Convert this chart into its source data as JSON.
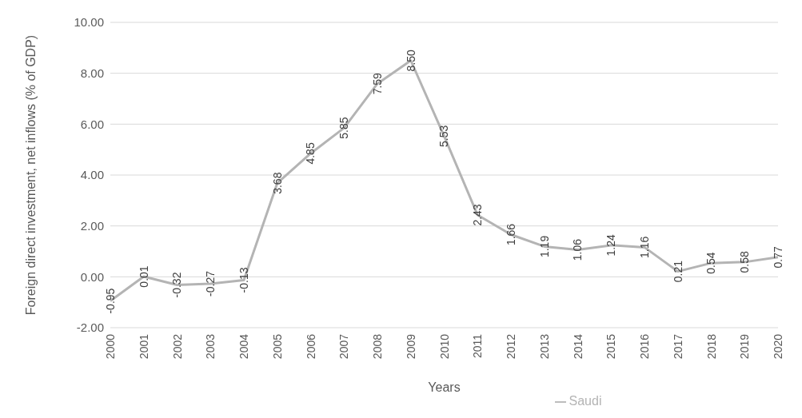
{
  "chart_data": {
    "type": "line",
    "xlabel": "Years",
    "ylabel": "Foreign direct investment, net inflows (% of GDP)",
    "categories": [
      "2000",
      "2001",
      "2002",
      "2003",
      "2004",
      "2005",
      "2006",
      "2007",
      "2008",
      "2009",
      "2010",
      "2011",
      "2012",
      "2013",
      "2014",
      "2015",
      "2016",
      "2017",
      "2018",
      "2019",
      "2020"
    ],
    "series": [
      {
        "name": "Saudi",
        "color": "#b4b4b4",
        "values": [
          -0.95,
          0.01,
          -0.32,
          -0.27,
          -0.13,
          3.68,
          4.85,
          5.85,
          7.59,
          8.5,
          5.53,
          2.43,
          1.66,
          1.19,
          1.06,
          1.24,
          1.16,
          0.21,
          0.54,
          0.58,
          0.77
        ],
        "value_labels": [
          "-0.95",
          "0.01",
          "-0.32",
          "-0.27",
          "-0.13",
          "3.68",
          "4.85",
          "5.85",
          "7.59",
          "8.50",
          "5.53",
          "2.43",
          "1.66",
          "1.19",
          "1.06",
          "1.24",
          "1.16",
          "0.21",
          "0.54",
          "0.58",
          "0.77"
        ]
      }
    ],
    "ylim": [
      -2,
      10
    ],
    "yticks": [
      {
        "value": -2,
        "label": "-2.00"
      },
      {
        "value": 0,
        "label": "0.00"
      },
      {
        "value": 2,
        "label": "2.00"
      },
      {
        "value": 4,
        "label": "4.00"
      },
      {
        "value": 6,
        "label": "6.00"
      },
      {
        "value": 8,
        "label": "8.00"
      },
      {
        "value": 10,
        "label": "10.00"
      }
    ],
    "grid": "y",
    "legend": "bottom",
    "marker": "none",
    "line_style": "solid"
  }
}
